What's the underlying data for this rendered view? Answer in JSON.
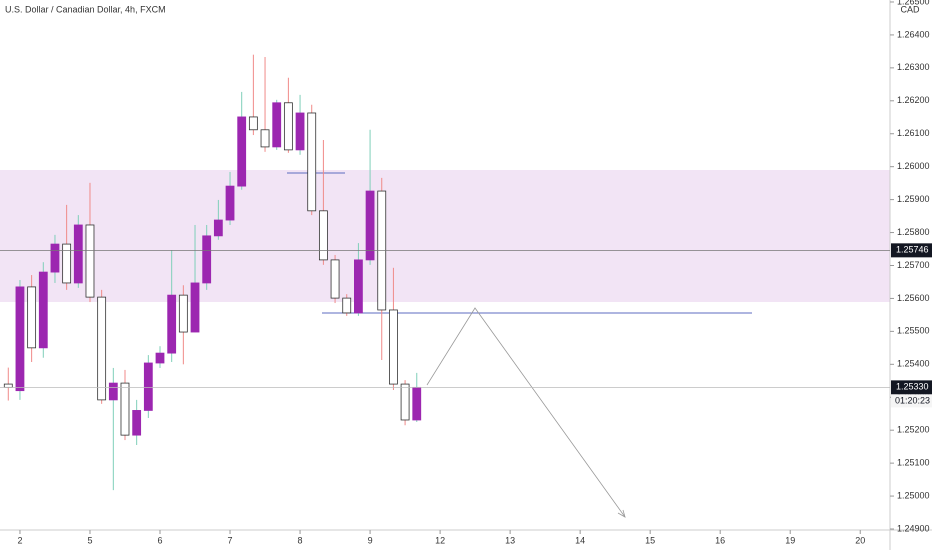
{
  "chart_data": {
    "type": "candlestick",
    "title": "U.S. Dollar / Canadian Dollar, 4h, FXCM",
    "y_label": "CAD",
    "x": [
      -1,
      0,
      1,
      2,
      3,
      4,
      5,
      6,
      7,
      8,
      9,
      10,
      11,
      12,
      13,
      14,
      15,
      16,
      17,
      18,
      19,
      20,
      21,
      22,
      23,
      24,
      25,
      26,
      27,
      28,
      29,
      30,
      31,
      32,
      33,
      34
    ],
    "open": [
      1.2534,
      1.2532,
      1.25635,
      1.2545,
      1.2568,
      1.25765,
      1.25647,
      1.25823,
      1.25604,
      1.25292,
      1.25343,
      1.25185,
      1.2526,
      1.25404,
      1.25434,
      1.2561,
      1.25498,
      1.25647,
      1.2579,
      1.25838,
      1.25941,
      1.26151,
      1.26112,
      1.2606,
      1.26194,
      1.26051,
      1.26163,
      1.25866,
      1.25717,
      1.25601,
      1.25556,
      1.25717,
      1.25926,
      1.25565,
      1.2534,
      1.25231
    ],
    "high": [
      1.2539,
      1.25656,
      1.25671,
      1.2571,
      1.25793,
      1.25884,
      1.25853,
      1.25951,
      1.25626,
      1.25389,
      1.25383,
      1.25292,
      1.25428,
      1.25455,
      1.25747,
      1.2564,
      1.25823,
      1.25823,
      1.25899,
      1.25984,
      1.26227,
      1.2634,
      1.26333,
      1.26203,
      1.2627,
      1.26218,
      1.26188,
      1.26081,
      1.25732,
      1.25613,
      1.25768,
      1.26112,
      1.25966,
      1.25693,
      1.25352,
      1.25374
    ],
    "low": [
      1.2529,
      1.25292,
      1.25407,
      1.2542,
      1.25647,
      1.25626,
      1.25632,
      1.25589,
      1.2528,
      1.25018,
      1.2517,
      1.25155,
      1.25237,
      1.25389,
      1.25407,
      1.254,
      1.25498,
      1.25626,
      1.25778,
      1.25823,
      1.2593,
      1.26096,
      1.26045,
      1.26051,
      1.26042,
      1.26036,
      1.25853,
      1.25702,
      1.25586,
      1.25547,
      1.25547,
      1.25702,
      1.25413,
      1.25322,
      1.25215,
      1.25225
    ],
    "close": [
      1.2533,
      1.25635,
      1.2545,
      1.2568,
      1.25765,
      1.25647,
      1.25823,
      1.25604,
      1.25292,
      1.25343,
      1.25185,
      1.2526,
      1.25404,
      1.25434,
      1.2561,
      1.25498,
      1.25647,
      1.2579,
      1.25838,
      1.25941,
      1.26151,
      1.26112,
      1.2606,
      1.26194,
      1.26051,
      1.26163,
      1.25866,
      1.25717,
      1.25601,
      1.25556,
      1.25717,
      1.25926,
      1.25565,
      1.2534,
      1.25231,
      1.2533
    ],
    "up_color": "#9c27b0",
    "down_color": "#ffffff",
    "xlim": [
      -1.71,
      74.55
    ],
    "xticks": [
      {
        "value": 0,
        "label": "2"
      },
      {
        "value": 6,
        "label": "5"
      },
      {
        "value": 12,
        "label": "6"
      },
      {
        "value": 18,
        "label": "7"
      },
      {
        "value": 24,
        "label": "8"
      },
      {
        "value": 30,
        "label": "9"
      },
      {
        "value": 36,
        "label": "12"
      },
      {
        "value": 42,
        "label": "13"
      },
      {
        "value": 48,
        "label": "14"
      },
      {
        "value": 54,
        "label": "15"
      },
      {
        "value": 60,
        "label": "16"
      },
      {
        "value": 66,
        "label": "19"
      },
      {
        "value": 72,
        "label": "20"
      }
    ],
    "ylim": [
      1.24897,
      1.26506
    ],
    "yticks": [
      {
        "value": 1.249,
        "label": "1.24900"
      },
      {
        "value": 1.25,
        "label": "1.25000"
      },
      {
        "value": 1.251,
        "label": "1.25100"
      },
      {
        "value": 1.252,
        "label": "1.25200"
      },
      {
        "value": 1.253,
        "label": "1.25300"
      },
      {
        "value": 1.254,
        "label": "1.25400"
      },
      {
        "value": 1.255,
        "label": "1.25500"
      },
      {
        "value": 1.256,
        "label": "1.25600"
      },
      {
        "value": 1.257,
        "label": "1.25700"
      },
      {
        "value": 1.258,
        "label": "1.25800"
      },
      {
        "value": 1.259,
        "label": "1.25900"
      },
      {
        "value": 1.26,
        "label": "1.26000"
      },
      {
        "value": 1.261,
        "label": "1.26100"
      },
      {
        "value": 1.262,
        "label": "1.26200"
      },
      {
        "value": 1.263,
        "label": "1.26300"
      },
      {
        "value": 1.264,
        "label": "1.26400"
      },
      {
        "value": 1.265,
        "label": "1.26500"
      }
    ],
    "price_lines": [
      1.25746,
      {
        "value": 1.2533,
        "label": "1.25330"
      }
    ],
    "countdown": "01:20:23"
  }
}
